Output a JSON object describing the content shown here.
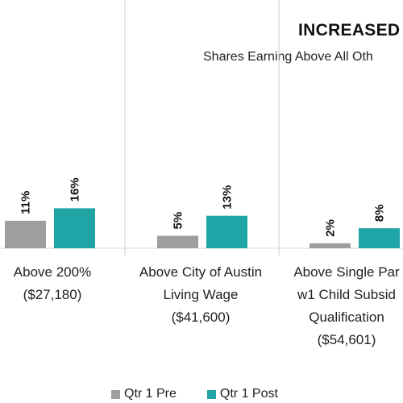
{
  "chart_data": {
    "type": "bar",
    "title": "INCREASED",
    "subtitle": "Shares Earning Above All Oth",
    "categories": [
      [
        "Above 200%",
        "($27,180)"
      ],
      [
        "Above City of Austin",
        "Living Wage",
        "($41,600)"
      ],
      [
        "Above Single Par",
        "w1 Child Subsid",
        "Qualification",
        "($54,601)"
      ]
    ],
    "series": [
      {
        "name": "Qtr 1 Pre",
        "color": "#9e9e9e",
        "values": [
          11,
          5,
          2
        ],
        "labels": [
          "11%",
          "5%",
          "2%"
        ]
      },
      {
        "name": "Qtr 1 Post",
        "color": "#1fa5a6",
        "values": [
          16,
          13,
          8
        ],
        "labels": [
          "16%",
          "13%",
          "8%"
        ]
      }
    ],
    "ylim": [
      0,
      80
    ],
    "grid": false,
    "legend_position": "bottom"
  }
}
